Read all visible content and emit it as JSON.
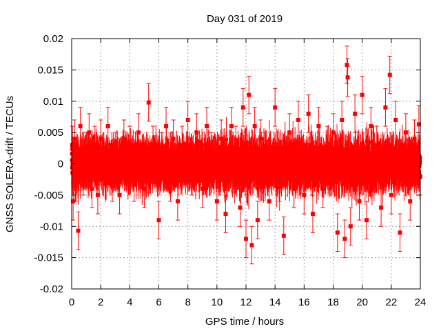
{
  "chart_data": {
    "type": "scatter",
    "title": "Day 031 of 2019",
    "xlabel": "GPS time / hours",
    "ylabel": "GNSS SOLERA-drift / TECUs",
    "xlim": [
      0,
      24
    ],
    "ylim": [
      -0.02,
      0.02
    ],
    "xticks": [
      0,
      2,
      4,
      6,
      8,
      10,
      12,
      14,
      16,
      18,
      20,
      22,
      24
    ],
    "xtick_labels": [
      "0",
      "2",
      "4",
      "6",
      "8",
      "10",
      "12",
      "14",
      "16",
      "18",
      "20",
      "22",
      "24"
    ],
    "yticks": [
      -0.02,
      -0.015,
      -0.01,
      -0.005,
      0,
      0.005,
      0.01,
      0.015,
      0.02
    ],
    "ytick_labels": [
      "-0.02",
      "-0.015",
      "-0.01",
      "-0.005",
      "0",
      "0.005",
      "0.01",
      "0.015",
      "0.02"
    ],
    "grid": true,
    "marker": "square",
    "error_bars": true,
    "color": "#ff0000",
    "series": [
      {
        "name": "SOLERA drift",
        "note": "dense time series, ~1 point per 30 s; values spread mostly within ±0.007 TECU with typical error ±0.003",
        "x": [
          0.05,
          0.1,
          0.15,
          0.2,
          0.3,
          0.45,
          0.6,
          0.8,
          1.0,
          1.2,
          1.4,
          1.6,
          1.8,
          2.0,
          2.2,
          2.5,
          2.8,
          3.0,
          3.3,
          3.6,
          4.0,
          4.3,
          4.6,
          5.0,
          5.3,
          5.6,
          6.0,
          6.2,
          6.5,
          6.8,
          7.0,
          7.3,
          7.6,
          8.0,
          8.3,
          8.6,
          9.0,
          9.3,
          9.6,
          10.0,
          10.3,
          10.6,
          11.0,
          11.3,
          11.6,
          11.8,
          12.0,
          12.2,
          12.4,
          12.6,
          12.8,
          13.0,
          13.3,
          13.6,
          14.0,
          14.3,
          14.6,
          15.0,
          15.3,
          15.6,
          16.0,
          16.3,
          16.6,
          17.0,
          17.3,
          17.6,
          18.0,
          18.3,
          18.6,
          18.8,
          18.95,
          19.0,
          19.2,
          19.5,
          19.8,
          20.0,
          20.3,
          20.6,
          21.0,
          21.3,
          21.6,
          21.9,
          22.0,
          22.3,
          22.6,
          23.0,
          23.3,
          23.6,
          23.9,
          24.0
        ],
        "y": [
          0.003,
          -0.006,
          0.001,
          0.004,
          -0.003,
          -0.0107,
          0.006,
          -0.002,
          0.002,
          0.005,
          -0.004,
          0.003,
          -0.005,
          0.004,
          0.001,
          0.006,
          -0.003,
          0.002,
          -0.005,
          0.004,
          0.003,
          -0.003,
          0.005,
          -0.004,
          0.0098,
          0.003,
          -0.009,
          0.002,
          0.006,
          -0.003,
          0.004,
          -0.006,
          0.003,
          0.007,
          -0.002,
          0.005,
          -0.004,
          0.006,
          0.002,
          -0.006,
          0.004,
          -0.008,
          0.006,
          0.003,
          -0.007,
          0.009,
          -0.012,
          0.011,
          -0.013,
          0.006,
          -0.009,
          0.004,
          0.002,
          -0.006,
          0.009,
          -0.003,
          -0.0115,
          0.005,
          -0.004,
          0.007,
          -0.005,
          0.008,
          -0.008,
          0.006,
          -0.004,
          0.003,
          0.005,
          -0.011,
          0.007,
          -0.012,
          0.0158,
          0.0138,
          -0.01,
          0.008,
          -0.006,
          0.011,
          -0.009,
          0.006,
          0.003,
          -0.007,
          0.009,
          0.0142,
          -0.005,
          0.007,
          -0.011,
          0.005,
          -0.006,
          0.004,
          0.0063,
          -0.002
        ],
        "yerr": 0.003
      }
    ]
  }
}
